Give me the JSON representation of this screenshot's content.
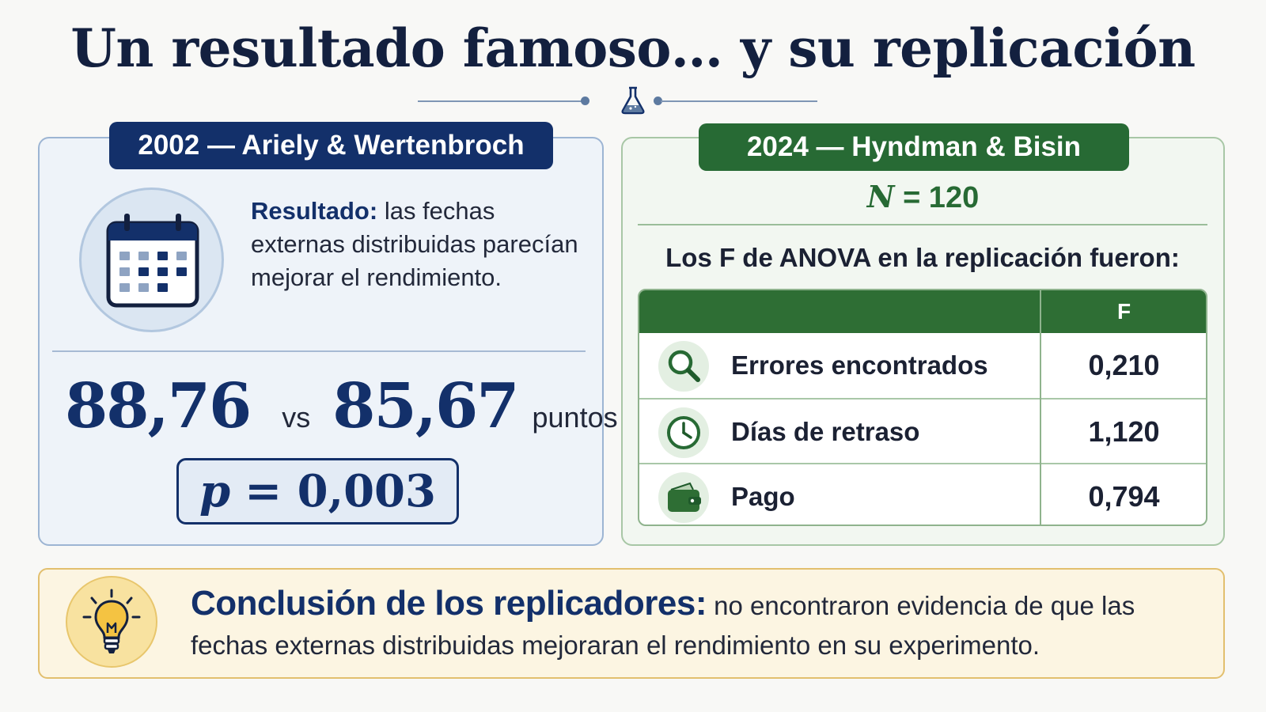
{
  "title": "Un resultado famoso… y su replicación",
  "icons": {
    "header": "flask-icon",
    "left_panel": "calendar-icon",
    "rows": [
      "magnifier-icon",
      "clock-icon",
      "wallet-icon"
    ],
    "conclusion": "lightbulb-icon"
  },
  "colors": {
    "navy": "#13306a",
    "green": "#276a34",
    "gold": "#e2bf6e"
  },
  "original": {
    "badge": "2002 — Ariely & Wertenbroch",
    "result_label": "Resultado:",
    "result_text": "las fechas externas distribuidas parecían mejorar el rendimiento.",
    "score_a": "88,76",
    "vs": "vs",
    "score_b": "85,67",
    "unit": "puntos",
    "p_symbol": "p",
    "p_rest": "= 0,003"
  },
  "replication": {
    "badge": "2024 — Hyndman & Bisin",
    "n_symbol": "N",
    "n_rest": "= 120",
    "caption": "Los F de ANOVA en la replicación fueron:",
    "table": {
      "header_label": "",
      "header_value": "F",
      "rows": [
        {
          "label": "Errores encontrados",
          "value": "0,210"
        },
        {
          "label": "Días de retraso",
          "value": "1,120"
        },
        {
          "label": "Pago",
          "value": "0,794"
        }
      ]
    }
  },
  "conclusion": {
    "label": "Conclusión de los replicadores:",
    "text": "no encontraron evidencia de que las fechas externas distribuidas mejoraran el rendimiento en su experimento."
  }
}
